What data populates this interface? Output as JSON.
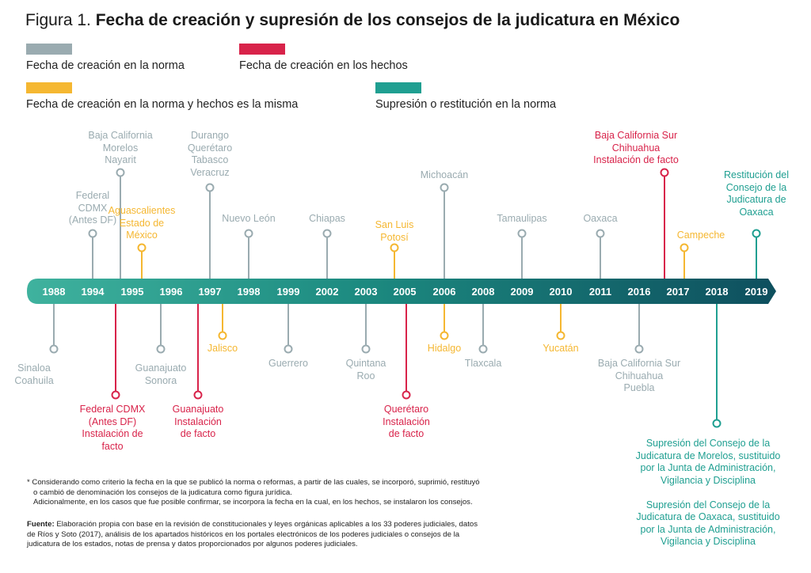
{
  "title": {
    "prefix": "Figura 1.",
    "bold": "Fecha de creación y supresión de los consejos de la judicatura en México"
  },
  "colors": {
    "grey": "#9aabb0",
    "red": "#d8234a",
    "yellow": "#f5b731",
    "teal": "#1f9f91"
  },
  "legend": [
    {
      "label": "Fecha de creación en la norma",
      "color": "grey"
    },
    {
      "label": "Fecha de creación en los hechos",
      "color": "red"
    },
    {
      "label": "Fecha de creación en la norma y hechos es la misma",
      "color": "yellow"
    },
    {
      "label": "Supresión o restitución en la norma",
      "color": "teal"
    }
  ],
  "years": [
    "1988",
    "1994",
    "1995",
    "1996",
    "1997",
    "1998",
    "1999",
    "2002",
    "2003",
    "2005",
    "2006",
    "2008",
    "2009",
    "2010",
    "2011",
    "2016",
    "2017",
    "2018",
    "2019"
  ],
  "events": [
    {
      "year": "1994",
      "side": "top",
      "color": "grey",
      "lines": [
        "Federal",
        "CDMX",
        "(Antes DF)"
      ]
    },
    {
      "year": "1995",
      "side": "top",
      "color": "grey",
      "lines": [
        "Baja California",
        "Morelos",
        "Nayarit"
      ]
    },
    {
      "year": "1995",
      "side": "top",
      "color": "yellow",
      "lines": [
        "Aguascalientes",
        "Estado de",
        "México"
      ]
    },
    {
      "year": "1997",
      "side": "top",
      "color": "grey",
      "lines": [
        "Durango",
        "Querétaro",
        "Tabasco",
        "Veracruz"
      ]
    },
    {
      "year": "1998",
      "side": "top",
      "color": "grey",
      "lines": [
        "Nuevo León"
      ]
    },
    {
      "year": "2002",
      "side": "top",
      "color": "grey",
      "lines": [
        "Chiapas"
      ]
    },
    {
      "year": "2005",
      "side": "top",
      "color": "yellow",
      "lines": [
        "San Luis",
        "Potosí"
      ]
    },
    {
      "year": "2006",
      "side": "top",
      "color": "grey",
      "lines": [
        "Michoacán"
      ]
    },
    {
      "year": "2009",
      "side": "top",
      "color": "grey",
      "lines": [
        "Tamaulipas"
      ]
    },
    {
      "year": "2011",
      "side": "top",
      "color": "grey",
      "lines": [
        "Oaxaca"
      ]
    },
    {
      "year": "2017",
      "side": "top",
      "color": "red",
      "lines": [
        "Baja California Sur",
        "Chihuahua",
        "Instalación de facto"
      ]
    },
    {
      "year": "2017",
      "side": "top",
      "color": "yellow",
      "lines": [
        "Campeche"
      ]
    },
    {
      "year": "2019",
      "side": "top",
      "color": "teal",
      "lines": [
        "Restitución del",
        "Consejo de la",
        "Judicatura de",
        "Oaxaca"
      ]
    },
    {
      "year": "1988",
      "side": "bottom",
      "color": "grey",
      "lines": [
        "Sinaloa",
        "Coahuila"
      ]
    },
    {
      "year": "1994",
      "side": "bottom",
      "color": "red",
      "lines": [
        "Federal CDMX",
        "(Antes DF)",
        "Instalación de",
        "facto"
      ]
    },
    {
      "year": "1996",
      "side": "bottom",
      "color": "grey",
      "lines": [
        "Guanajuato",
        "Sonora"
      ]
    },
    {
      "year": "1997",
      "side": "bottom",
      "color": "red",
      "lines": [
        "Guanajuato",
        "Instalación",
        "de facto"
      ]
    },
    {
      "year": "1997",
      "side": "bottom",
      "color": "yellow",
      "lines": [
        "Jalisco"
      ]
    },
    {
      "year": "1999",
      "side": "bottom",
      "color": "grey",
      "lines": [
        "Guerrero"
      ]
    },
    {
      "year": "2003",
      "side": "bottom",
      "color": "grey",
      "lines": [
        "Quintana",
        "Roo"
      ]
    },
    {
      "year": "2005",
      "side": "bottom",
      "color": "red",
      "lines": [
        "Querétaro",
        "Instalación",
        "de facto"
      ]
    },
    {
      "year": "2006",
      "side": "bottom",
      "color": "yellow",
      "lines": [
        "Hidalgo"
      ]
    },
    {
      "year": "2008",
      "side": "bottom",
      "color": "grey",
      "lines": [
        "Tlaxcala"
      ]
    },
    {
      "year": "2010",
      "side": "bottom",
      "color": "yellow",
      "lines": [
        "Yucatán"
      ]
    },
    {
      "year": "2016",
      "side": "bottom",
      "color": "grey",
      "lines": [
        "Baja California Sur",
        "Chihuahua",
        "Puebla"
      ]
    },
    {
      "year": "2018",
      "side": "bottom",
      "color": "teal",
      "lines": [
        "Supresión del Consejo de la",
        "Judicatura de Morelos, sustituido",
        "por la Junta de Administración,",
        "Vigilancia y Disciplina",
        "",
        "Supresión del Consejo de la",
        "Judicatura de Oaxaca, sustituido",
        "por la Junta de Administración,",
        "Vigilancia y Disciplina"
      ]
    }
  ],
  "notes": {
    "asterisk_1": "* Considerando como criterio la fecha en la que se publicó la norma o reformas, a partir de las cuales, se incorporó, suprimió, restituyó",
    "asterisk_2": "o cambió de denominación los consejos de la judicatura como figura jurídica.",
    "asterisk_3": "Adicionalmente, en los casos que fue posible confirmar, se incorpora la fecha en la cual, en los hechos, se instalaron los consejos.",
    "source_label": "Fuente:",
    "source_1": " Elaboración propia con base en la revisión de constitucionales y leyes orgánicas aplicables a los 33 poderes judiciales, datos",
    "source_2": "de Ríos y Soto (2017), análisis de los apartados históricos en los portales electrónicos de los poderes judiciales o consejos de la",
    "source_3": "judicatura de los estados, notas de prensa y datos proporcionados por algunos poderes judiciales."
  }
}
